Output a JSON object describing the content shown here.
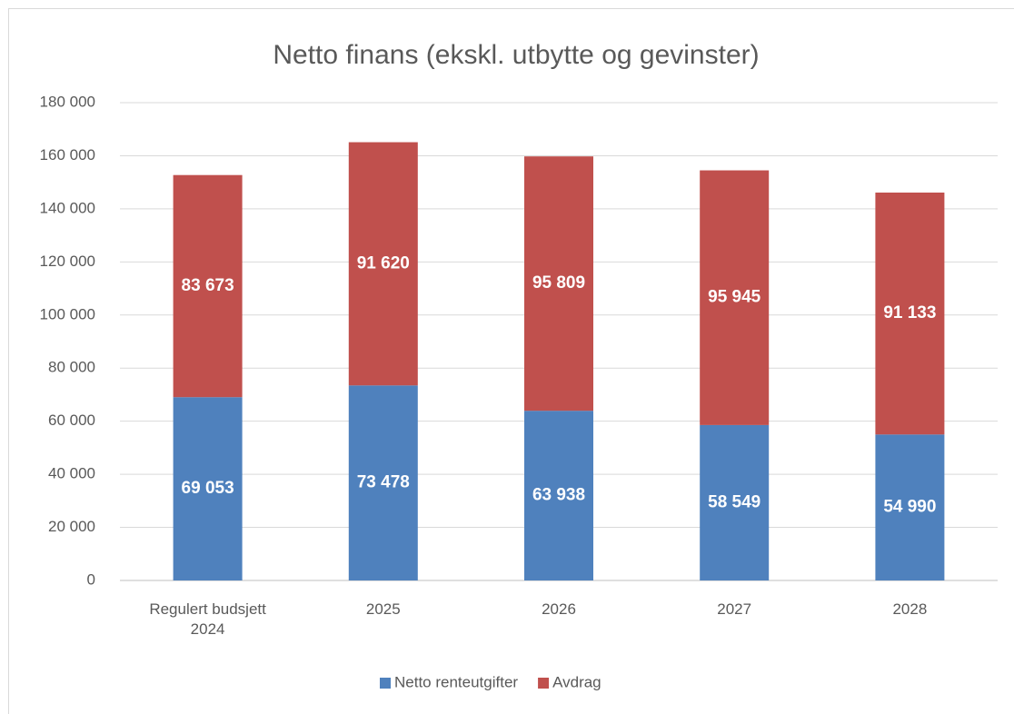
{
  "chart_data": {
    "type": "stacked_bar",
    "title": "Netto finans (ekskl. utbytte og gevinster)",
    "categories": [
      "Regulert budsjett 2024",
      "2025",
      "2026",
      "2027",
      "2028"
    ],
    "series": [
      {
        "name": "Netto renteutgifter",
        "color": "#4f81bd",
        "values": [
          69053,
          73478,
          63938,
          58549,
          54990
        ],
        "value_labels": [
          "69 053",
          "73 478",
          "63 938",
          "58 549",
          "54 990"
        ]
      },
      {
        "name": "Avdrag",
        "color": "#c0504d",
        "values": [
          83673,
          91620,
          95809,
          95945,
          91133
        ],
        "value_labels": [
          "83 673",
          "91 620",
          "95 809",
          "95 945",
          "91 133"
        ]
      }
    ],
    "ylim": [
      0,
      180000
    ],
    "yticks": [
      0,
      {
        "value": 20000,
        "label": "20 000"
      },
      {
        "value": 40000,
        "label": "40 000"
      },
      {
        "value": 60000,
        "label": "60 000"
      },
      {
        "value": 80000,
        "label": "80 000"
      },
      {
        "value": 100000,
        "label": "100 000"
      },
      {
        "value": 120000,
        "label": "120 000"
      },
      {
        "value": 140000,
        "label": "140 000"
      },
      {
        "value": 160000,
        "label": "160 000"
      },
      {
        "value": 180000,
        "label": "180 000"
      }
    ],
    "grid": true,
    "legend": "bottom"
  }
}
